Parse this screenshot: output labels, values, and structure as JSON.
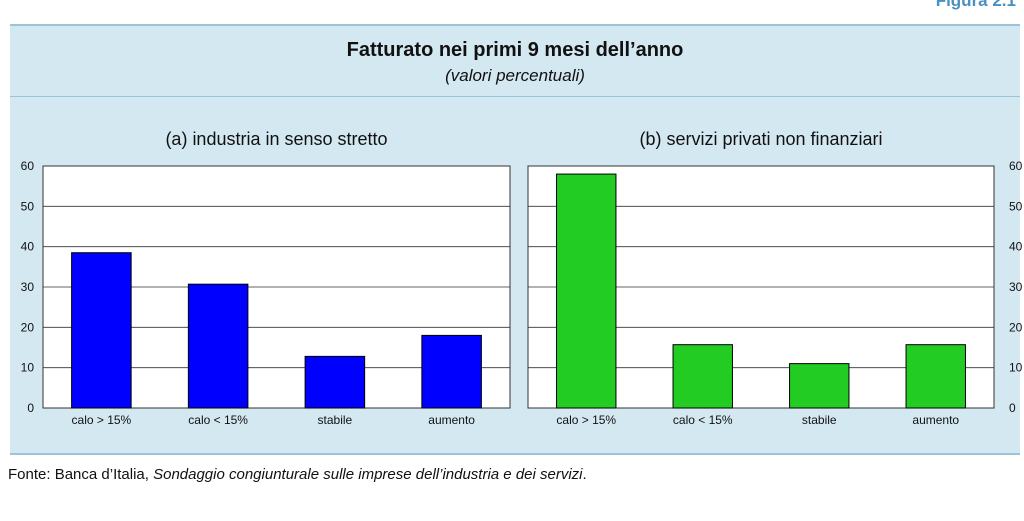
{
  "figure_label": "Figura 2.1",
  "title": "Fatturato nei primi 9 mesi dell’anno",
  "subtitle": "(valori percentuali)",
  "source": {
    "prefix": "Fonte: Banca d’Italia, ",
    "italic": "Sondaggio congiunturale sulle imprese dell’industria e dei servizi",
    "suffix": "."
  },
  "colors": {
    "panel_a_bars": "#0000ff",
    "panel_b_bars": "#22cc22",
    "background": "#d4e8f1"
  },
  "chart_data": [
    {
      "type": "bar",
      "title": "(a) industria in senso stretto",
      "categories": [
        "calo > 15%",
        "calo < 15%",
        "stabile",
        "aumento"
      ],
      "values": [
        38.5,
        30.7,
        12.8,
        18
      ],
      "ylim": [
        0,
        60
      ],
      "yticks": [
        "0",
        "10",
        "20",
        "30",
        "40",
        "50",
        "60"
      ],
      "yaxis_side": "left",
      "grid": true,
      "color": "#0000ff"
    },
    {
      "type": "bar",
      "title": "(b) servizi privati non finanziari",
      "categories": [
        "calo > 15%",
        "calo < 15%",
        "stabile",
        "aumento"
      ],
      "values": [
        58,
        15.7,
        11,
        15.7
      ],
      "ylim": [
        0,
        60
      ],
      "yticks": [
        "0",
        "10",
        "20",
        "30",
        "40",
        "50",
        "60"
      ],
      "yaxis_side": "right",
      "grid": true,
      "color": "#22cc22"
    }
  ]
}
